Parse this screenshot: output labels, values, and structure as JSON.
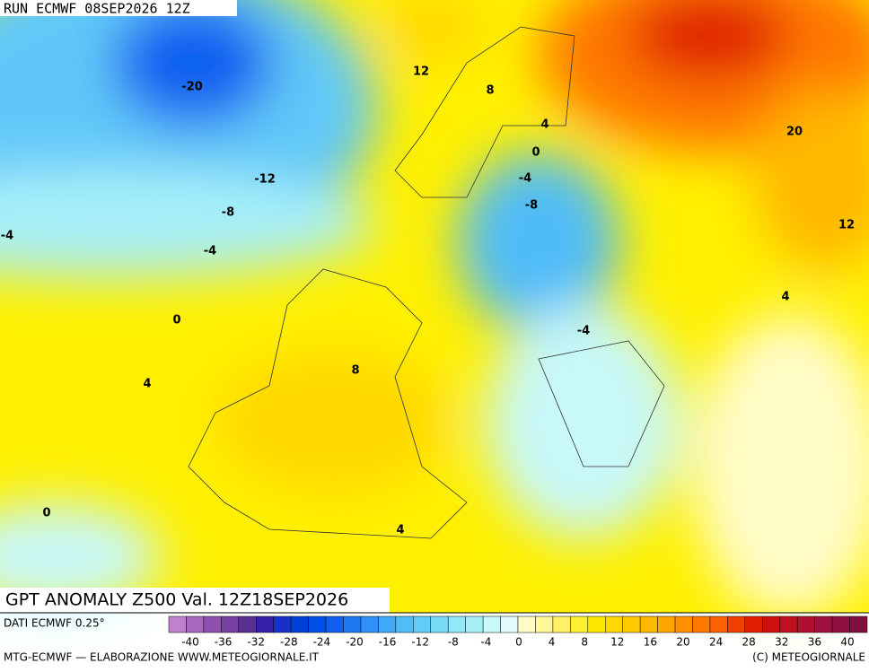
{
  "header": {
    "run": "RUN ECMWF 08SEP2026 12Z"
  },
  "map": {
    "title": "GPT ANOMALY Z500 Val. 12Z18SEP2026",
    "contour_labels": [
      -20,
      12,
      8,
      4,
      0,
      -4,
      -12,
      -8,
      -8,
      -4,
      -4,
      20,
      12,
      4,
      0,
      -4,
      8,
      4,
      0,
      4
    ]
  },
  "footer": {
    "data_source": "DATI ECMWF 0.25°",
    "credits": "MTG-ECMWF — ELABORAZIONE WWW.METEOGIORNALE.IT",
    "copyright": "(C) METEOGIORNALE"
  },
  "colorbar": {
    "ticks": [
      -40,
      -36,
      -32,
      -28,
      -24,
      -20,
      -16,
      -12,
      -8,
      -4,
      0,
      4,
      8,
      12,
      16,
      20,
      24,
      28,
      32,
      36,
      40
    ],
    "colors": [
      "#c080d0",
      "#a868c0",
      "#9050b0",
      "#7840a0",
      "#583090",
      "#3820a8",
      "#1830c8",
      "#0040d8",
      "#0050e8",
      "#1060f0",
      "#2078f0",
      "#3090f8",
      "#40a8f8",
      "#50bcf8",
      "#60ccf8",
      "#78dcf8",
      "#90e8f8",
      "#a8f0f8",
      "#c8f8f8",
      "#e4fcfc",
      "#fffcc8",
      "#fff898",
      "#fff068",
      "#fff030",
      "#ffe800",
      "#ffd800",
      "#ffc800",
      "#ffb800",
      "#ffa400",
      "#ff9000",
      "#ff7800",
      "#ff6000",
      "#f04000",
      "#e02000",
      "#d01010",
      "#c01020",
      "#b01030",
      "#a01040",
      "#901040",
      "#801040"
    ]
  }
}
